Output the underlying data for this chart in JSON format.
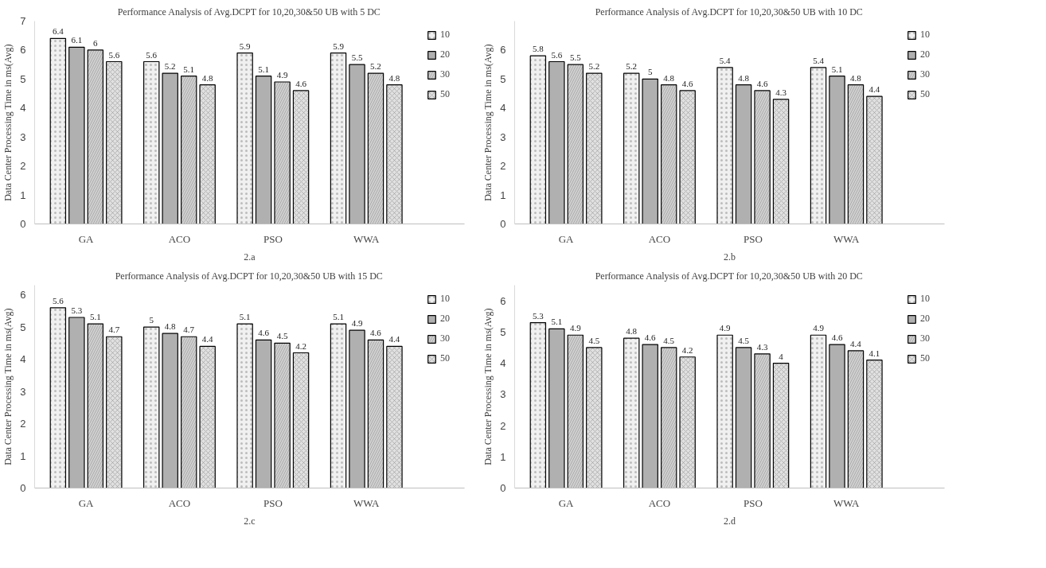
{
  "chart_data": [
    {
      "type": "bar",
      "title": "Performance Analysis of Avg.DCPT for 10,20,30&50 UB with 5 DC",
      "xlabel": "2.a",
      "ylabel": "Data Center Processing Time in ms(Avg)",
      "categories": [
        "GA",
        "ACO",
        "PSO",
        "WWA"
      ],
      "ylim": [
        0,
        7
      ],
      "yticks": [
        0,
        1,
        2,
        3,
        4,
        5,
        6,
        7
      ],
      "grid": false,
      "legend": "right",
      "data_labels": true,
      "series": [
        {
          "name": "10",
          "color": "#f0f0f0",
          "values": [
            6.4,
            5.6,
            5.9,
            5.9
          ]
        },
        {
          "name": "20",
          "color": "#b0b0b0",
          "values": [
            6.1,
            5.2,
            5.1,
            5.5
          ]
        },
        {
          "name": "30",
          "color": "#d0d0d0",
          "values": [
            6,
            5.1,
            4.9,
            5.2
          ]
        },
        {
          "name": "50",
          "color": "#e0e0e0",
          "values": [
            5.6,
            4.8,
            4.6,
            4.8
          ]
        }
      ]
    },
    {
      "type": "bar",
      "title": "Performance Analysis of Avg.DCPT for 10,20,30&50 UB with 10 DC",
      "xlabel": "2.b",
      "ylabel": "Data Center Processing Time in ms(Avg)",
      "categories": [
        "GA",
        "ACO",
        "PSO",
        "WWA"
      ],
      "ylim": [
        0,
        7
      ],
      "yticks": [
        0,
        1,
        2,
        3,
        4,
        5,
        6
      ],
      "grid": false,
      "legend": "right",
      "data_labels": true,
      "series": [
        {
          "name": "10",
          "color": "#f0f0f0",
          "values": [
            5.8,
            5.2,
            5.4,
            5.4
          ]
        },
        {
          "name": "20",
          "color": "#b0b0b0",
          "values": [
            5.6,
            5,
            4.8,
            5.1
          ]
        },
        {
          "name": "30",
          "color": "#d0d0d0",
          "values": [
            5.5,
            4.8,
            4.6,
            4.8
          ]
        },
        {
          "name": "50",
          "color": "#e0e0e0",
          "values": [
            5.2,
            4.6,
            4.3,
            4.4
          ]
        }
      ]
    },
    {
      "type": "bar",
      "title": "Performance Analysis of Avg.DCPT for 10,20,30&50 UB with 15 DC",
      "xlabel": "2.c",
      "ylabel": "Data Center Processing Time in ms(Avg)",
      "categories": [
        "GA",
        "ACO",
        "PSO",
        "WWA"
      ],
      "ylim": [
        0,
        6.3
      ],
      "yticks": [
        0,
        1,
        2,
        3,
        4,
        5,
        6
      ],
      "grid": false,
      "legend": "right",
      "data_labels": true,
      "series": [
        {
          "name": "10",
          "color": "#f0f0f0",
          "values": [
            5.6,
            5,
            5.1,
            5.1
          ]
        },
        {
          "name": "20",
          "color": "#b0b0b0",
          "values": [
            5.3,
            4.8,
            4.6,
            4.9
          ]
        },
        {
          "name": "30",
          "color": "#d0d0d0",
          "values": [
            5.1,
            4.7,
            4.5,
            4.6
          ]
        },
        {
          "name": "50",
          "color": "#e0e0e0",
          "values": [
            4.7,
            4.4,
            4.2,
            4.4
          ]
        }
      ]
    },
    {
      "type": "bar",
      "title": "Performance Analysis of Avg.DCPT for 10,20,30&50 UB with 20 DC",
      "xlabel": "2.d",
      "ylabel": "Data Center Processing Time in ms(Avg)",
      "categories": [
        "GA",
        "ACO",
        "PSO",
        "WWA"
      ],
      "ylim": [
        0,
        6.5
      ],
      "yticks": [
        0,
        1,
        2,
        3,
        4,
        5,
        6
      ],
      "grid": false,
      "legend": "right",
      "data_labels": true,
      "series": [
        {
          "name": "10",
          "color": "#f0f0f0",
          "values": [
            5.3,
            4.8,
            4.9,
            4.9
          ]
        },
        {
          "name": "20",
          "color": "#b0b0b0",
          "values": [
            5.1,
            4.6,
            4.5,
            4.6
          ]
        },
        {
          "name": "30",
          "color": "#d0d0d0",
          "values": [
            4.9,
            4.5,
            4.3,
            4.4
          ]
        },
        {
          "name": "50",
          "color": "#e0e0e0",
          "values": [
            4.5,
            4.2,
            4.0,
            4.1
          ]
        }
      ]
    }
  ]
}
